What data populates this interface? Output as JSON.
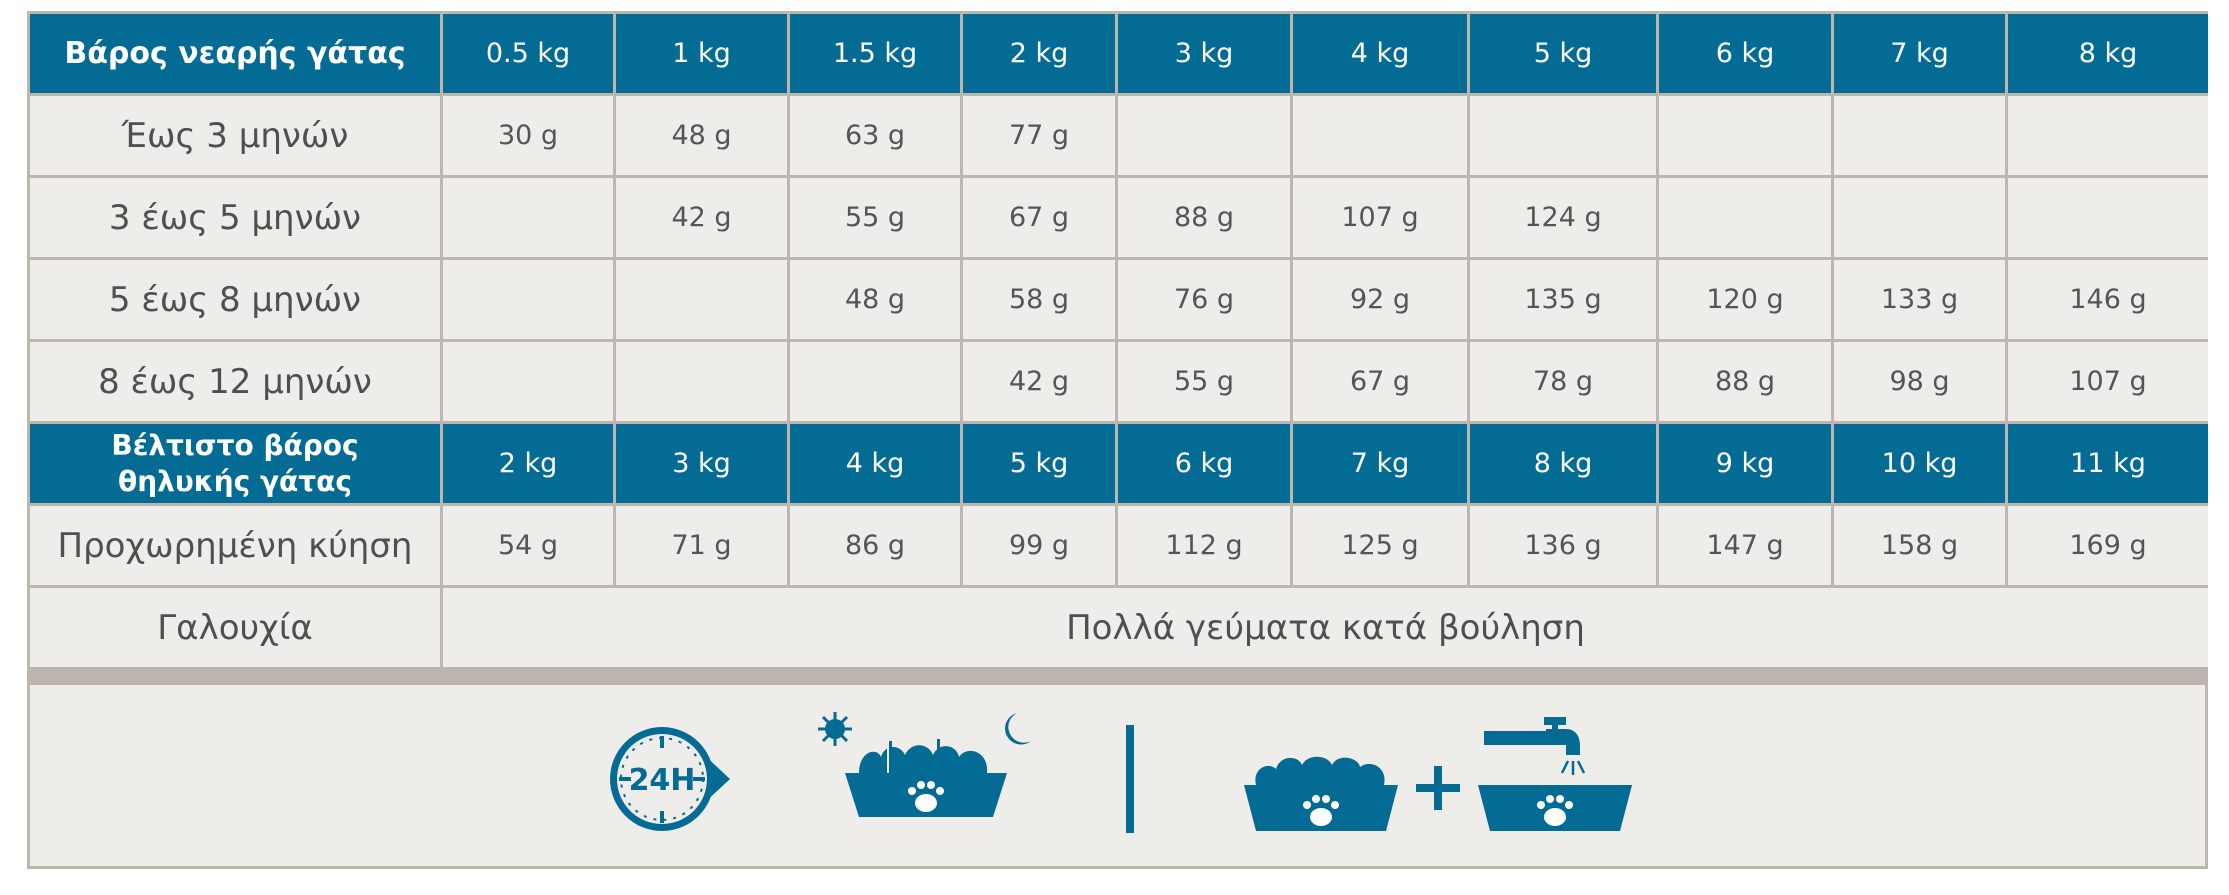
{
  "kitten": {
    "header_label": "Βάρος νεαρής γάτας",
    "weights": [
      "0.5 kg",
      "1 kg",
      "1.5 kg",
      "2 kg",
      "3 kg",
      "4 kg",
      "5 kg",
      "6 kg",
      "7 kg",
      "8 kg"
    ],
    "rows": [
      {
        "label": "Έως 3 μηνών",
        "values": [
          "30 g",
          "48 g",
          "63 g",
          "77 g",
          "",
          "",
          "",
          "",
          "",
          ""
        ]
      },
      {
        "label": "3 έως 5 μηνών",
        "values": [
          "",
          "42 g",
          "55 g",
          "67 g",
          "88 g",
          "107 g",
          "124 g",
          "",
          "",
          ""
        ]
      },
      {
        "label": "5 έως 8 μηνών",
        "values": [
          "",
          "",
          "48 g",
          "58 g",
          "76 g",
          "92 g",
          "135 g",
          "120 g",
          "133 g",
          "146 g"
        ]
      },
      {
        "label": "8 έως 12 μηνών",
        "values": [
          "",
          "",
          "",
          "42 g",
          "55 g",
          "67 g",
          "78 g",
          "88 g",
          "98 g",
          "107 g"
        ]
      }
    ]
  },
  "female": {
    "header_label_line1": "Βέλτιστο βάρος",
    "header_label_line2": "θηλυκής γάτας",
    "weights": [
      "2 kg",
      "3 kg",
      "4 kg",
      "5 kg",
      "6 kg",
      "7 kg",
      "8 kg",
      "9 kg",
      "10 kg",
      "11 kg"
    ],
    "pregnancy": {
      "label": "Προχωρημένη κύηση",
      "values": [
        "54 g",
        "71 g",
        "86 g",
        "99 g",
        "112 g",
        "125 g",
        "136 g",
        "147 g",
        "158 g",
        "169 g"
      ]
    },
    "lactation": {
      "label": "Γαλουχία",
      "text": "Πολλά γεύματα κατά βούληση"
    }
  },
  "icons": {
    "clock_text": "24H",
    "items": [
      "clock-24h-icon",
      "day-night-bowl-icon",
      "divider-icon",
      "food-bowl-icon",
      "plus-icon",
      "water-bowl-icon"
    ]
  },
  "colors": {
    "header": "#046b95",
    "cell": "#efedea",
    "grid": "#bdb6ae",
    "text": "#555555"
  }
}
